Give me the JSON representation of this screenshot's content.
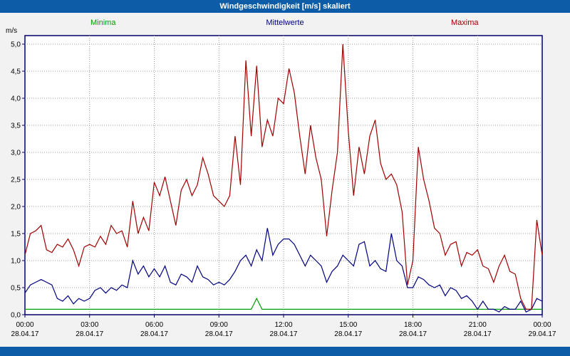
{
  "header": {
    "title": "Windgeschwindigkeit [m/s] skaliert"
  },
  "colors": {
    "bar_background": "#0c5ca8",
    "bar_text": "#ffffff",
    "plot_border": "#000066",
    "grid": "#999999",
    "minima": "#00a000",
    "mittelwerte": "#000080",
    "maxima": "#a00000"
  },
  "legend": [
    {
      "key": "minima",
      "label": "Minima",
      "color": "#00a000"
    },
    {
      "key": "mittelwerte",
      "label": "Mittelwerte",
      "color": "#000080"
    },
    {
      "key": "maxima",
      "label": "Maxima",
      "color": "#a00000"
    }
  ],
  "chart_data": {
    "type": "line",
    "title": "Windgeschwindigkeit [m/s] skaliert",
    "ylabel": "m/s",
    "xlabel": "",
    "ylim": [
      0,
      5.0
    ],
    "grid": true,
    "legend_position": "top",
    "yticks": [
      {
        "value": 5.0,
        "label": "5,0"
      },
      {
        "value": 4.5,
        "label": "4,5"
      },
      {
        "value": 4.0,
        "label": "4,0"
      },
      {
        "value": 3.5,
        "label": "3,5"
      },
      {
        "value": 3.0,
        "label": "3,0"
      },
      {
        "value": 2.5,
        "label": "2,5"
      },
      {
        "value": 2.0,
        "label": "2,0"
      },
      {
        "value": 1.5,
        "label": "1,5"
      },
      {
        "value": 1.0,
        "label": "1,0"
      },
      {
        "value": 0.5,
        "label": "0,5"
      },
      {
        "value": 0.0,
        "label": "0,0"
      }
    ],
    "x_ticks": [
      {
        "time": "00:00",
        "date": "28.04.17"
      },
      {
        "time": "03:00",
        "date": "28.04.17"
      },
      {
        "time": "06:00",
        "date": "28.04.17"
      },
      {
        "time": "09:00",
        "date": "28.04.17"
      },
      {
        "time": "12:00",
        "date": "28.04.17"
      },
      {
        "time": "15:00",
        "date": "28.04.17"
      },
      {
        "time": "18:00",
        "date": "28.04.17"
      },
      {
        "time": "21:00",
        "date": "28.04.17"
      },
      {
        "time": "00:00",
        "date": "29.04.17"
      }
    ],
    "sample_interval_minutes": 15,
    "series": [
      {
        "name": "Minima",
        "color": "#00a000",
        "values": [
          0.1,
          0.1,
          0.1,
          0.1,
          0.1,
          0.1,
          0.1,
          0.1,
          0.1,
          0.1,
          0.1,
          0.1,
          0.1,
          0.1,
          0.1,
          0.1,
          0.1,
          0.1,
          0.1,
          0.1,
          0.1,
          0.1,
          0.1,
          0.1,
          0.1,
          0.1,
          0.1,
          0.1,
          0.1,
          0.1,
          0.1,
          0.1,
          0.1,
          0.1,
          0.1,
          0.1,
          0.1,
          0.1,
          0.1,
          0.1,
          0.1,
          0.1,
          0.1,
          0.3,
          0.1,
          0.1,
          0.1,
          0.1,
          0.1,
          0.1,
          0.1,
          0.1,
          0.1,
          0.1,
          0.1,
          0.1,
          0.1,
          0.1,
          0.1,
          0.1,
          0.1,
          0.1,
          0.1,
          0.1,
          0.1,
          0.1,
          0.1,
          0.1,
          0.1,
          0.1,
          0.1,
          0.1,
          0.1,
          0.1,
          0.1,
          0.1,
          0.1,
          0.1,
          0.1,
          0.1,
          0.1,
          0.1,
          0.1,
          0.1,
          0.1,
          0.1,
          0.1,
          0.1,
          0.1,
          0.1,
          0.1,
          0.1,
          0.1,
          0.1,
          0.1,
          0.1,
          0.1
        ]
      },
      {
        "name": "Mittelwerte",
        "color": "#000080",
        "values": [
          0.4,
          0.55,
          0.6,
          0.65,
          0.6,
          0.55,
          0.3,
          0.25,
          0.35,
          0.2,
          0.3,
          0.25,
          0.3,
          0.45,
          0.5,
          0.4,
          0.5,
          0.45,
          0.55,
          0.5,
          1.0,
          0.75,
          0.9,
          0.7,
          0.85,
          0.7,
          0.9,
          0.6,
          0.55,
          0.75,
          0.7,
          0.6,
          0.9,
          0.7,
          0.65,
          0.55,
          0.6,
          0.55,
          0.65,
          0.8,
          1.0,
          1.1,
          0.9,
          1.2,
          1.0,
          1.6,
          1.1,
          1.3,
          1.4,
          1.4,
          1.3,
          1.1,
          0.9,
          1.1,
          1.0,
          0.9,
          0.6,
          0.8,
          0.9,
          1.1,
          1.0,
          0.9,
          1.3,
          1.35,
          0.9,
          1.0,
          0.85,
          0.8,
          1.5,
          1.0,
          0.9,
          0.5,
          0.5,
          0.7,
          0.65,
          0.55,
          0.5,
          0.55,
          0.35,
          0.5,
          0.45,
          0.3,
          0.35,
          0.25,
          0.1,
          0.25,
          0.1,
          0.1,
          0.05,
          0.15,
          0.1,
          0.1,
          0.25,
          0.05,
          0.1,
          0.3,
          0.25
        ]
      },
      {
        "name": "Maxima",
        "color": "#a00000",
        "values": [
          1.1,
          1.5,
          1.55,
          1.65,
          1.2,
          1.15,
          1.3,
          1.25,
          1.4,
          1.2,
          0.9,
          1.25,
          1.3,
          1.25,
          1.45,
          1.3,
          1.65,
          1.5,
          1.55,
          1.25,
          2.1,
          1.5,
          1.8,
          1.55,
          2.45,
          2.2,
          2.55,
          2.1,
          1.65,
          2.3,
          2.5,
          2.2,
          2.4,
          2.9,
          2.6,
          2.2,
          2.1,
          2.0,
          2.2,
          3.3,
          2.4,
          4.7,
          3.3,
          4.6,
          3.1,
          3.6,
          3.3,
          4.0,
          3.9,
          4.55,
          4.1,
          3.3,
          2.6,
          3.5,
          2.9,
          2.5,
          1.45,
          2.3,
          3.0,
          5.0,
          3.4,
          2.2,
          3.1,
          2.6,
          3.3,
          3.6,
          2.8,
          2.5,
          2.6,
          2.4,
          1.9,
          0.55,
          1.0,
          3.1,
          2.5,
          2.1,
          1.6,
          1.5,
          1.1,
          1.3,
          1.35,
          0.9,
          1.15,
          1.1,
          1.2,
          0.9,
          0.85,
          0.6,
          0.9,
          1.1,
          0.8,
          0.75,
          0.3,
          0.1,
          0.1,
          1.75,
          1.1
        ]
      }
    ]
  }
}
